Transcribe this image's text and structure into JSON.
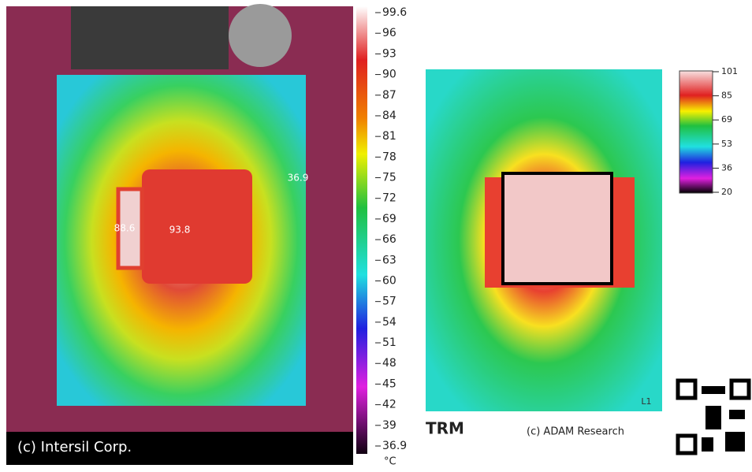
{
  "left_image": {
    "caption": "(c) Intersil Corp.",
    "spots": [
      "93.8",
      "88.6",
      "36.9"
    ],
    "scale": [
      "99.6",
      "96",
      "93",
      "90",
      "87",
      "84",
      "81",
      "78",
      "75",
      "72",
      "69",
      "66",
      "63",
      "60",
      "57",
      "54",
      "51",
      "48",
      "45",
      "42",
      "39",
      "36.9"
    ],
    "unit": "°C"
  },
  "right_image": {
    "brand": "TRM",
    "caption": "(c) ADAM Research",
    "layer": "L1",
    "scale": [
      "101",
      "85",
      "69",
      "53",
      "36",
      "20"
    ]
  }
}
